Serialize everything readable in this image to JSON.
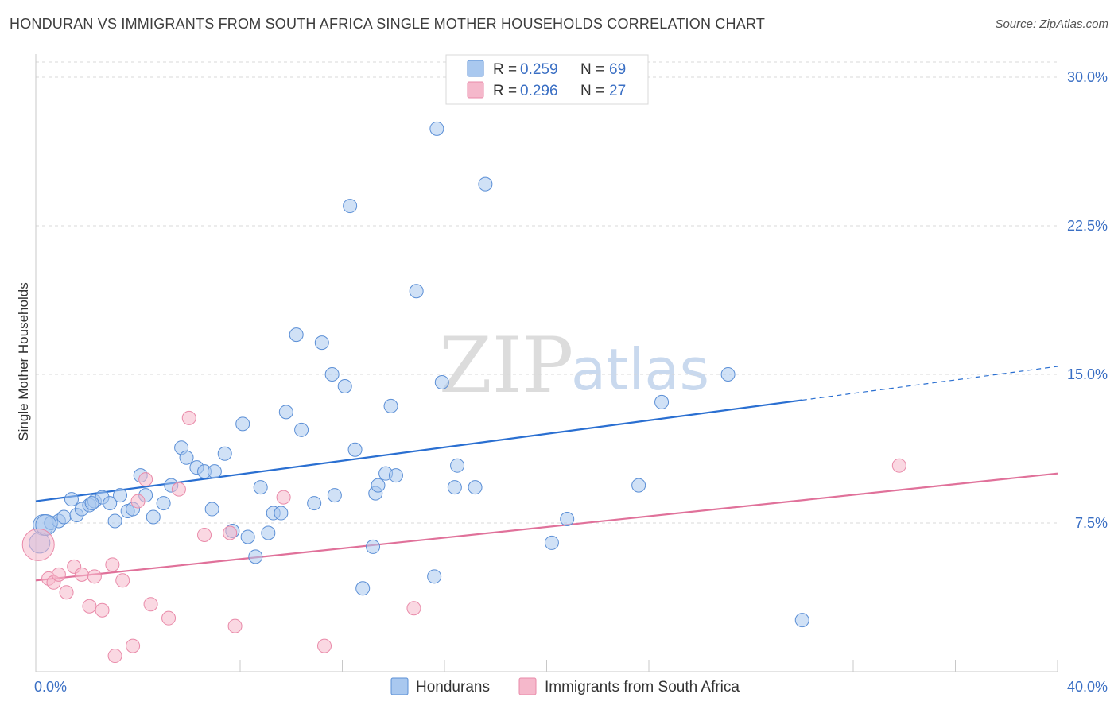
{
  "title": "HONDURAN VS IMMIGRANTS FROM SOUTH AFRICA SINGLE MOTHER HOUSEHOLDS CORRELATION CHART",
  "source": "Source: ZipAtlas.com",
  "watermark": {
    "part1": "ZIP",
    "part2": "atlas"
  },
  "colors": {
    "blue_fill": "#a9c8ef",
    "blue_stroke": "#5b8fd6",
    "blue_line": "#2a6fd1",
    "pink_fill": "#f5b8cb",
    "pink_stroke": "#e98aa9",
    "pink_line": "#e0719a",
    "grid": "#d8d8d8",
    "axis_text": "#3a6fc4"
  },
  "legend": {
    "rows": [
      {
        "r_label": "R = ",
        "r_value": "0.259",
        "n_label": "N = ",
        "n_value": "69"
      },
      {
        "r_label": "R = ",
        "r_value": "0.296",
        "n_label": "N = ",
        "n_value": "27"
      }
    ]
  },
  "chart_data": {
    "type": "scatter",
    "title": "HONDURAN VS IMMIGRANTS FROM SOUTH AFRICA SINGLE MOTHER HOUSEHOLDS CORRELATION CHART",
    "xlabel": "",
    "ylabel": "Single Mother Households",
    "xlim": [
      0,
      40
    ],
    "ylim": [
      0,
      30
    ],
    "x_tick_labels": [
      "0.0%",
      "40.0%"
    ],
    "y_ticks": [
      7.5,
      15.0,
      22.5,
      30.0
    ],
    "y_tick_labels": [
      "7.5%",
      "15.0%",
      "22.5%",
      "30.0%"
    ],
    "series": [
      {
        "name": "Hondurans",
        "r": 0.259,
        "n": 69,
        "trend": {
          "x0": 0,
          "y0": 8.6,
          "x1": 30,
          "y1": 13.7,
          "dash_to_x": 40,
          "dash_to_y": 15.4
        },
        "points": [
          [
            0.3,
            7.4
          ],
          [
            0.6,
            7.5
          ],
          [
            0.9,
            7.6
          ],
          [
            1.1,
            7.8
          ],
          [
            1.4,
            8.7
          ],
          [
            1.6,
            7.9
          ],
          [
            1.8,
            8.2
          ],
          [
            2.1,
            8.4
          ],
          [
            2.3,
            8.6
          ],
          [
            2.6,
            8.8
          ],
          [
            2.9,
            8.5
          ],
          [
            3.1,
            7.6
          ],
          [
            3.3,
            8.9
          ],
          [
            3.6,
            8.1
          ],
          [
            3.8,
            8.2
          ],
          [
            4.3,
            8.9
          ],
          [
            4.6,
            7.8
          ],
          [
            5.0,
            8.5
          ],
          [
            5.3,
            9.4
          ],
          [
            5.7,
            11.3
          ],
          [
            5.9,
            10.8
          ],
          [
            6.3,
            10.3
          ],
          [
            6.6,
            10.1
          ],
          [
            6.9,
            8.2
          ],
          [
            7.0,
            10.1
          ],
          [
            7.4,
            11.0
          ],
          [
            7.7,
            7.1
          ],
          [
            8.1,
            12.5
          ],
          [
            8.8,
            9.3
          ],
          [
            8.3,
            6.8
          ],
          [
            8.6,
            5.8
          ],
          [
            9.1,
            7.0
          ],
          [
            9.3,
            8.0
          ],
          [
            9.6,
            8.0
          ],
          [
            9.8,
            13.1
          ],
          [
            10.2,
            17.0
          ],
          [
            10.4,
            12.2
          ],
          [
            10.9,
            8.5
          ],
          [
            11.2,
            16.6
          ],
          [
            11.6,
            15.0
          ],
          [
            11.7,
            8.9
          ],
          [
            12.1,
            14.4
          ],
          [
            12.3,
            23.5
          ],
          [
            12.5,
            11.2
          ],
          [
            12.8,
            4.2
          ],
          [
            13.2,
            6.3
          ],
          [
            13.3,
            9.0
          ],
          [
            13.4,
            9.4
          ],
          [
            13.7,
            10.0
          ],
          [
            13.9,
            13.4
          ],
          [
            14.1,
            9.9
          ],
          [
            14.9,
            19.2
          ],
          [
            15.6,
            4.8
          ],
          [
            15.7,
            27.4
          ],
          [
            15.9,
            14.6
          ],
          [
            16.4,
            9.3
          ],
          [
            16.5,
            10.4
          ],
          [
            17.2,
            9.3
          ],
          [
            17.6,
            24.6
          ],
          [
            20.2,
            6.5
          ],
          [
            20.8,
            7.7
          ],
          [
            23.6,
            9.4
          ],
          [
            24.5,
            13.6
          ],
          [
            27.1,
            15.0
          ],
          [
            30.0,
            2.6
          ],
          [
            0.15,
            6.5
          ],
          [
            0.4,
            7.4
          ],
          [
            2.2,
            8.5
          ],
          [
            4.1,
            9.9
          ]
        ]
      },
      {
        "name": "Immigrants from South Africa",
        "r": 0.296,
        "n": 27,
        "trend": {
          "x0": 0,
          "y0": 4.6,
          "x1": 40,
          "y1": 10.0
        },
        "points": [
          [
            0.1,
            6.4
          ],
          [
            0.5,
            4.7
          ],
          [
            0.7,
            4.5
          ],
          [
            0.9,
            4.9
          ],
          [
            1.2,
            4.0
          ],
          [
            1.5,
            5.3
          ],
          [
            1.8,
            4.9
          ],
          [
            2.1,
            3.3
          ],
          [
            2.3,
            4.8
          ],
          [
            2.6,
            3.1
          ],
          [
            3.0,
            5.4
          ],
          [
            3.1,
            0.8
          ],
          [
            3.4,
            4.6
          ],
          [
            3.8,
            1.3
          ],
          [
            4.0,
            8.6
          ],
          [
            4.3,
            9.7
          ],
          [
            4.5,
            3.4
          ],
          [
            5.2,
            2.7
          ],
          [
            5.6,
            9.2
          ],
          [
            6.0,
            12.8
          ],
          [
            6.6,
            6.9
          ],
          [
            7.6,
            7.0
          ],
          [
            7.8,
            2.3
          ],
          [
            9.7,
            8.8
          ],
          [
            11.3,
            1.3
          ],
          [
            14.8,
            3.2
          ],
          [
            33.8,
            10.4
          ]
        ]
      }
    ]
  },
  "bottom_legend": {
    "items": [
      {
        "label": "Hondurans"
      },
      {
        "label": "Immigrants from South Africa"
      }
    ]
  }
}
